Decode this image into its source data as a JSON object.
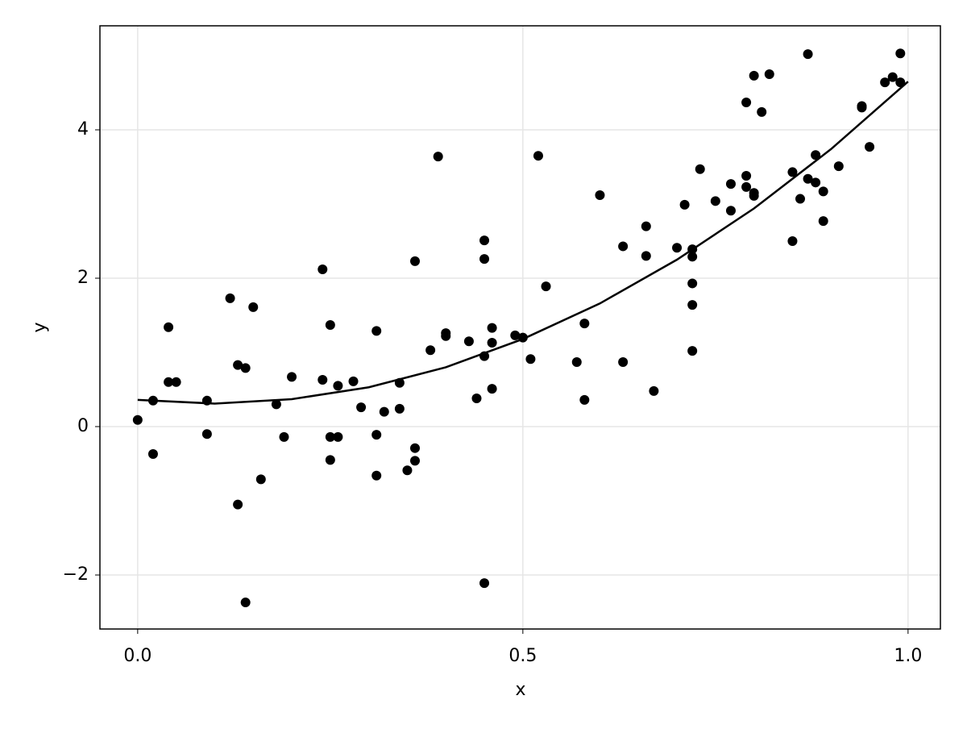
{
  "chart_data": {
    "type": "scatter",
    "xlabel": "x",
    "ylabel": "y",
    "xlim": [
      -0.049,
      1.042
    ],
    "ylim": [
      -2.728,
      5.402
    ],
    "xticks": [
      {
        "value": 0,
        "label": "0.0"
      },
      0.5,
      {
        "value": 1,
        "label": "1.0"
      }
    ],
    "yticks": [
      {
        "value": -2,
        "label": "−2"
      },
      0,
      2,
      4
    ],
    "grid": true,
    "series": [
      {
        "type": "scatter",
        "color": "#000000",
        "x": [
          0.0,
          0.02,
          0.02,
          0.04,
          0.05,
          0.04,
          0.09,
          0.09,
          0.12,
          0.13,
          0.13,
          0.14,
          0.14,
          0.15,
          0.16,
          0.18,
          0.19,
          0.2,
          0.24,
          0.24,
          0.25,
          0.25,
          0.25,
          0.26,
          0.26,
          0.28,
          0.29,
          0.31,
          0.31,
          0.31,
          0.32,
          0.34,
          0.34,
          0.35,
          0.36,
          0.36,
          0.36,
          0.38,
          0.39,
          0.4,
          0.4,
          0.43,
          0.44,
          0.45,
          0.45,
          0.45,
          0.45,
          0.46,
          0.46,
          0.46,
          0.49,
          0.5,
          0.51,
          0.52,
          0.53,
          0.57,
          0.58,
          0.58,
          0.6,
          0.63,
          0.63,
          0.66,
          0.66,
          0.67,
          0.7,
          0.71,
          0.72,
          0.72,
          0.72,
          0.72,
          0.72,
          0.73,
          0.75,
          0.77,
          0.77,
          0.79,
          0.79,
          0.79,
          0.8,
          0.8,
          0.8,
          0.81,
          0.82,
          0.85,
          0.85,
          0.86,
          0.87,
          0.87,
          0.88,
          0.88,
          0.89,
          0.89,
          0.91,
          0.94,
          0.94,
          0.95,
          0.97,
          0.98,
          0.99,
          0.99
        ],
        "values": [
          0.09,
          -0.37,
          0.35,
          0.6,
          0.6,
          1.34,
          0.35,
          -0.1,
          1.73,
          0.83,
          -1.05,
          0.79,
          -2.37,
          1.61,
          -0.71,
          0.3,
          -0.14,
          0.67,
          2.12,
          0.63,
          -0.45,
          1.37,
          -0.14,
          -0.14,
          0.55,
          0.61,
          0.26,
          1.29,
          -0.11,
          -0.66,
          0.2,
          0.59,
          0.24,
          -0.59,
          -0.29,
          -0.46,
          2.23,
          1.03,
          3.64,
          1.22,
          1.26,
          1.15,
          0.38,
          2.26,
          -2.11,
          0.95,
          2.51,
          1.13,
          0.51,
          1.33,
          1.23,
          1.2,
          0.91,
          3.65,
          1.89,
          0.87,
          1.39,
          0.36,
          3.12,
          0.87,
          2.43,
          2.3,
          2.7,
          0.48,
          2.41,
          2.99,
          2.39,
          2.29,
          1.64,
          1.02,
          1.93,
          3.47,
          3.04,
          2.91,
          3.27,
          3.38,
          4.37,
          3.23,
          3.15,
          3.11,
          4.73,
          4.24,
          4.75,
          3.43,
          2.5,
          3.07,
          5.02,
          3.34,
          3.29,
          3.66,
          3.17,
          2.77,
          3.51,
          4.32,
          4.3,
          3.77,
          4.64,
          4.71,
          5.03,
          4.64
        ]
      },
      {
        "type": "line",
        "color": "#000000",
        "x": [
          0,
          0.1,
          0.2,
          0.3,
          0.4,
          0.5,
          0.6,
          0.7,
          0.8,
          0.9,
          1.0
        ],
        "values": [
          0.36,
          0.31,
          0.37,
          0.53,
          0.8,
          1.18,
          1.66,
          2.25,
          2.94,
          3.74,
          4.65
        ]
      }
    ]
  }
}
